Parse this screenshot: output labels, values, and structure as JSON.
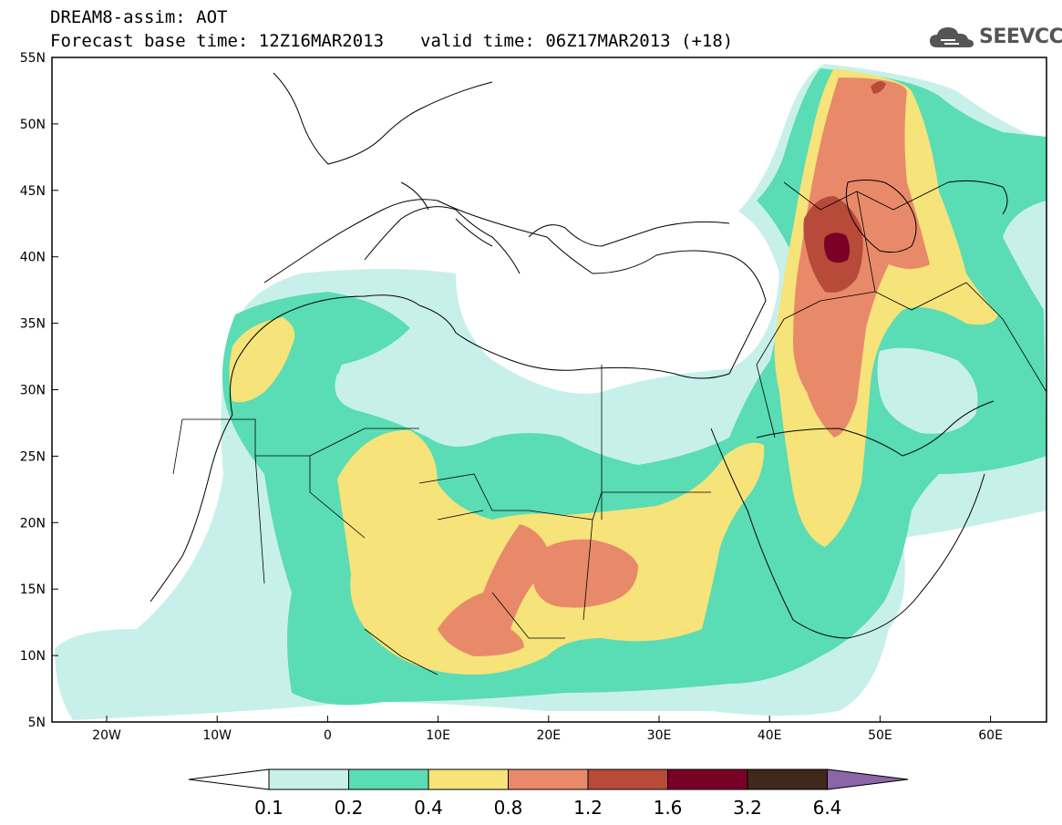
{
  "header": {
    "title": "DREAM8-assim: AOT",
    "base_time": "Forecast base time: 12Z16MAR2013",
    "valid_time": "valid time: 06Z17MAR2013 (+18)"
  },
  "logo": {
    "text": "SEEVCCC",
    "icon": "cloud-icon"
  },
  "axes": {
    "lat_labels": [
      "55N",
      "50N",
      "45N",
      "40N",
      "35N",
      "30N",
      "25N",
      "20N",
      "15N",
      "10N",
      "5N"
    ],
    "lon_labels": [
      "20W",
      "10W",
      "0",
      "10E",
      "20E",
      "30E",
      "40E",
      "50E",
      "60E"
    ]
  },
  "colorbar": {
    "labels": [
      "0.1",
      "0.2",
      "0.4",
      "0.8",
      "1.2",
      "1.6",
      "3.2",
      "6.4"
    ],
    "colors": [
      "#ffffff",
      "#c8f0ea",
      "#5adcb4",
      "#f6e37a",
      "#e88a6a",
      "#b84a3a",
      "#7a0028",
      "#40281a",
      "#8c64a8"
    ]
  }
}
